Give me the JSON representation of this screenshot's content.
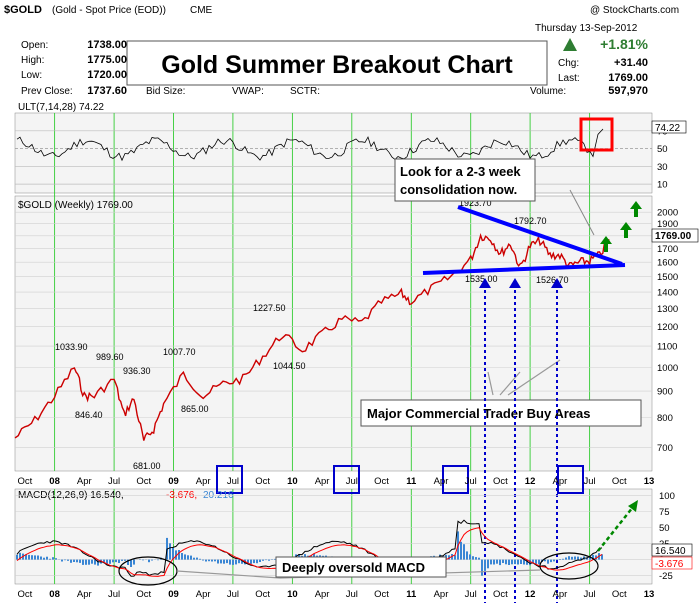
{
  "header": {
    "symbol": "$GOLD",
    "description": "(Gold - Spot Price (EOD))",
    "exchange": "CME",
    "date": "Thursday  13-Sep-2012",
    "watermark": "@ StockCharts.com",
    "open_label": "Open:",
    "open": "1738.00",
    "high_label": "High:",
    "high": "1775.00",
    "low_label": "Low:",
    "low": "1720.00",
    "prev_close_label": "Prev Close:",
    "prev_close": "1737.60",
    "bid_label": "Bid Size:",
    "vwap_label": "VWAP:",
    "sctr_label": "SCTR:",
    "change_pct": "+1.81%",
    "chg_label": "Chg:",
    "chg": "+31.40",
    "last_label": "Last:",
    "last": "1769.00",
    "volume_label": "Volume:",
    "volume": "597,970"
  },
  "title": "Gold Summer Breakout Chart",
  "annotations": {
    "consolidation": [
      "Look for a 2-3 week",
      "consolidation now."
    ],
    "commercial": "Major Commercial Trader Buy Areas",
    "macd_note": "Deeply oversold MACD"
  },
  "colors": {
    "price": "#cc0000",
    "ult": "#000000",
    "macd_line": "#000000",
    "signal_line": "#ff0000",
    "histogram": "#3a86d4",
    "grid_vertical": "#33cc33",
    "trendline": "#0000ff",
    "arrow": "#008800",
    "box_highlight": "#ff0000"
  },
  "chart_data": [
    {
      "type": "line",
      "indicator": "ULT(7,14,28)",
      "label": "ULT(7,14,28) 74.22",
      "last_value": "74.22",
      "y_ticks": [
        "70",
        "50",
        "30",
        "10"
      ],
      "ylim": [
        0,
        90
      ]
    },
    {
      "type": "line",
      "series_label": "$GOLD (Weekly) 1769.00",
      "last_value": "1769.00",
      "scale": "log",
      "ylim": [
        630,
        2150
      ],
      "y_ticks": [
        "2000",
        "1900",
        "1800",
        "1700",
        "1600",
        "1500",
        "1400",
        "1300",
        "1200",
        "1100",
        "1000",
        "900",
        "800",
        "700"
      ],
      "x_ticks": [
        "Oct",
        "08",
        "Apr",
        "Jul",
        "Oct",
        "09",
        "Apr",
        "Jul",
        "Oct",
        "10",
        "Apr",
        "Jul",
        "Oct",
        "11",
        "Apr",
        "Jul",
        "Oct",
        "12",
        "Apr",
        "Jul",
        "Oct",
        "13"
      ],
      "price_labels": [
        {
          "date": "2008-03",
          "value": "1033.90"
        },
        {
          "date": "2008-06",
          "value": "989.60"
        },
        {
          "date": "2008-07",
          "value": "936.30"
        },
        {
          "date": "2008-04",
          "value": "846.40"
        },
        {
          "date": "2008-10",
          "value": "681.00"
        },
        {
          "date": "2009-02",
          "value": "1007.70"
        },
        {
          "date": "2009-04",
          "value": "865.00"
        },
        {
          "date": "2009-12",
          "value": "1227.50"
        },
        {
          "date": "2010-02",
          "value": "1044.50"
        },
        {
          "date": "2011-09",
          "value": "1923.70"
        },
        {
          "date": "2012-02",
          "value": "1792.70"
        },
        {
          "date": "2011-12",
          "value": "1535.00"
        },
        {
          "date": "2012-05",
          "value": "1526.70"
        }
      ],
      "approx_values": [
        [
          "2007-09",
          730
        ],
        [
          "2007-11",
          790
        ],
        [
          "2008-01",
          880
        ],
        [
          "2008-03",
          1000
        ],
        [
          "2008-04",
          880
        ],
        [
          "2008-05",
          880
        ],
        [
          "2008-07",
          950
        ],
        [
          "2008-08",
          810
        ],
        [
          "2008-09",
          870
        ],
        [
          "2008-10",
          720
        ],
        [
          "2008-11",
          760
        ],
        [
          "2008-12",
          850
        ],
        [
          "2009-02",
          970
        ],
        [
          "2009-04",
          880
        ],
        [
          "2009-06",
          930
        ],
        [
          "2009-08",
          950
        ],
        [
          "2009-10",
          1050
        ],
        [
          "2009-12",
          1160
        ],
        [
          "2010-02",
          1080
        ],
        [
          "2010-04",
          1160
        ],
        [
          "2010-06",
          1240
        ],
        [
          "2010-08",
          1220
        ],
        [
          "2010-10",
          1340
        ],
        [
          "2010-12",
          1390
        ],
        [
          "2011-01",
          1340
        ],
        [
          "2011-03",
          1420
        ],
        [
          "2011-05",
          1500
        ],
        [
          "2011-07",
          1620
        ],
        [
          "2011-08",
          1800
        ],
        [
          "2011-09",
          1780
        ],
        [
          "2011-10",
          1660
        ],
        [
          "2011-11",
          1740
        ],
        [
          "2011-12",
          1560
        ],
        [
          "2012-01",
          1720
        ],
        [
          "2012-02",
          1760
        ],
        [
          "2012-03",
          1650
        ],
        [
          "2012-04",
          1650
        ],
        [
          "2012-05",
          1570
        ],
        [
          "2012-06",
          1600
        ],
        [
          "2012-07",
          1610
        ],
        [
          "2012-08",
          1650
        ],
        [
          "2012-09",
          1769
        ]
      ]
    },
    {
      "type": "line",
      "indicator": "MACD(12,26,9)",
      "label_macd": "MACD(12,26,9) 16.540,",
      "label_signal": "-3.676,",
      "label_hist": "20.216",
      "last_macd": "16.540",
      "last_signal": "-3.676",
      "y_ticks": [
        "100",
        "75",
        "50",
        "25",
        "0",
        "-25"
      ],
      "ylim": [
        -38,
        110
      ]
    }
  ]
}
